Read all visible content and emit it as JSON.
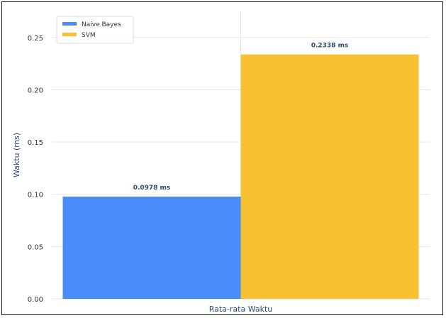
{
  "chart_data": {
    "type": "bar",
    "title": "",
    "xlabel": "Rata-rata Waktu",
    "ylabel": "Waktu (ms)",
    "categories": [
      "Rata-rata Waktu"
    ],
    "series": [
      {
        "name": "Naive Bayes",
        "values": [
          0.0978
        ],
        "label": "0.0978 ms",
        "color": "#4a8cf7"
      },
      {
        "name": "SVM",
        "values": [
          0.2338
        ],
        "label": "0.2338 ms",
        "color": "#f8c132"
      }
    ],
    "ylim": [
      0,
      0.275
    ],
    "yticks": [
      "0.00",
      "0.05",
      "0.10",
      "0.15",
      "0.20",
      "0.25"
    ],
    "yticks_values": [
      0,
      0.05,
      0.1,
      0.15,
      0.2,
      0.25
    ],
    "grid": true,
    "legend_position": "top-left"
  },
  "colors": {
    "grid": "#e6e6e6",
    "axis_text": "#2e4a7d"
  }
}
